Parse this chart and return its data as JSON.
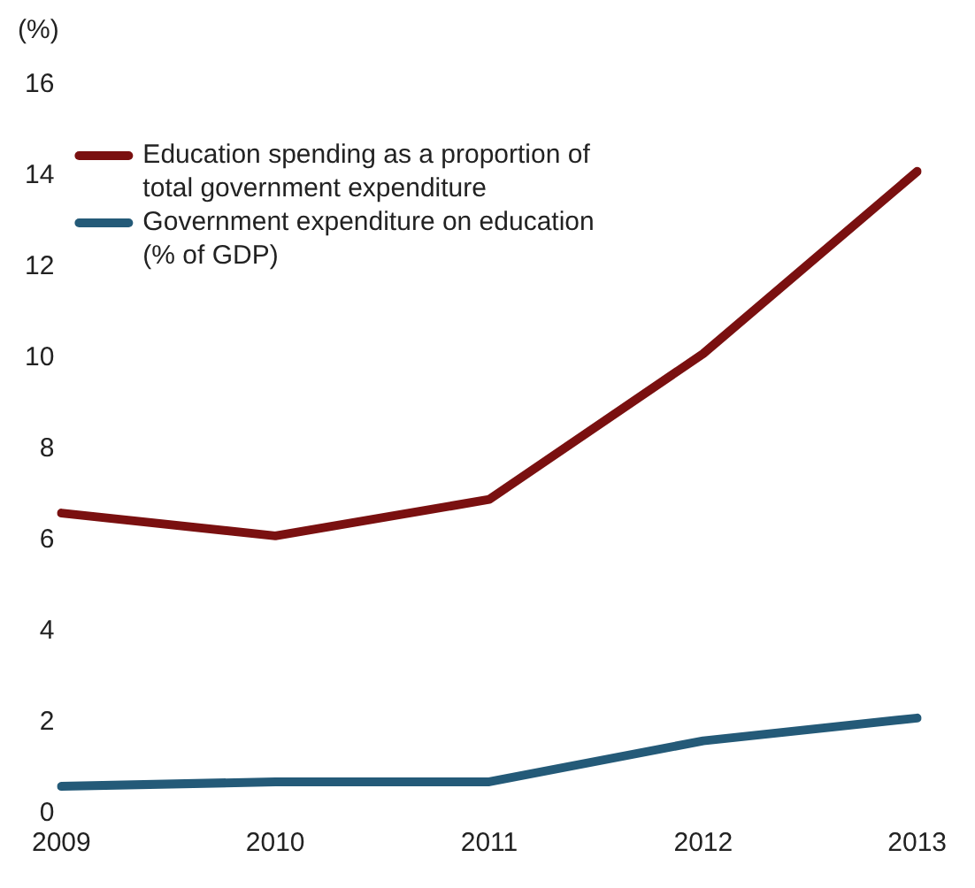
{
  "chart_data": {
    "type": "line",
    "ylabel": "(%)",
    "categories": [
      "2009",
      "2010",
      "2011",
      "2012",
      "2013"
    ],
    "series": [
      {
        "name": "Education spending as a proportion of total government expenditure",
        "color": "#7a1010",
        "values": [
          6.6,
          6.1,
          6.9,
          10.1,
          14.1
        ]
      },
      {
        "name": "Government expenditure on education (% of GDP)",
        "color": "#245a78",
        "values": [
          0.6,
          0.7,
          0.7,
          1.6,
          2.1
        ]
      }
    ],
    "ylim": [
      0,
      16
    ],
    "yticks": [
      0,
      2,
      4,
      6,
      8,
      10,
      12,
      14,
      16
    ],
    "grid": false,
    "legend": "top left",
    "marker": "none",
    "line_style": "solid"
  }
}
